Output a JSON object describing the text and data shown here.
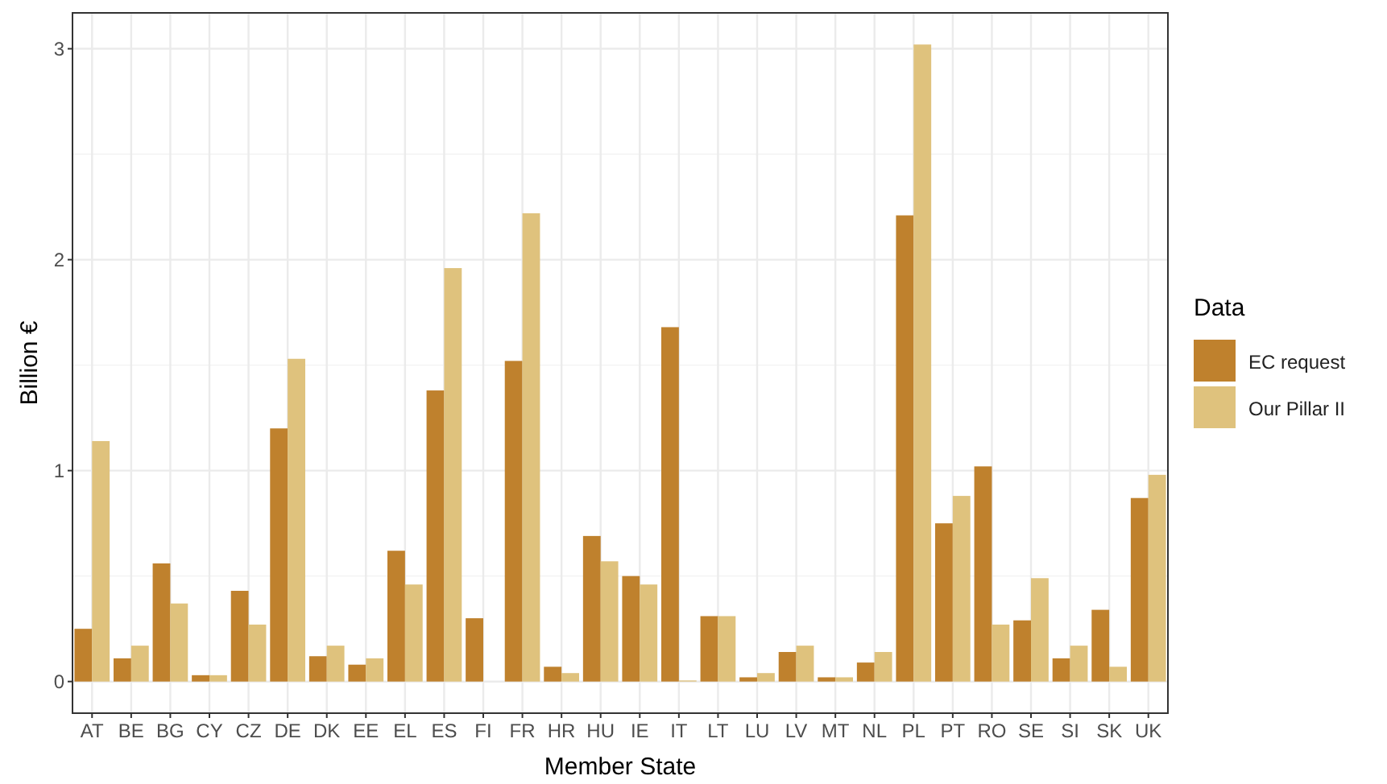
{
  "chart_data": {
    "type": "bar",
    "xlabel": "Member State",
    "ylabel": "Billion €",
    "legend_title": "Data",
    "legend": "right",
    "grid": true,
    "categories": [
      "AT",
      "BE",
      "BG",
      "CY",
      "CZ",
      "DE",
      "DK",
      "EE",
      "EL",
      "ES",
      "FI",
      "FR",
      "HR",
      "HU",
      "IE",
      "IT",
      "LT",
      "LU",
      "LV",
      "MT",
      "NL",
      "PL",
      "PT",
      "RO",
      "SE",
      "SI",
      "SK",
      "UK"
    ],
    "series": [
      {
        "name": "EC request",
        "color": "#bf812d",
        "values": [
          0.25,
          0.11,
          0.56,
          0.03,
          0.43,
          1.2,
          0.12,
          0.08,
          0.62,
          1.38,
          0.3,
          1.52,
          0.07,
          0.69,
          0.5,
          1.68,
          0.31,
          0.02,
          0.14,
          0.02,
          0.09,
          2.21,
          0.75,
          1.02,
          0.29,
          0.11,
          0.34,
          0.87
        ]
      },
      {
        "name": "Our Pillar II",
        "color": "#dfc27d",
        "values": [
          1.14,
          0.17,
          0.37,
          0.03,
          0.27,
          1.53,
          0.17,
          0.11,
          0.46,
          1.96,
          0,
          2.22,
          0.04,
          0.57,
          0.46,
          0.005,
          0.31,
          0.04,
          0.17,
          0.02,
          0.14,
          3.02,
          0.88,
          0.27,
          0.49,
          0.17,
          0.07,
          0.98
        ]
      }
    ],
    "ylim": [
      -0.15,
      3.17
    ],
    "yticks": [
      0,
      1,
      2,
      3
    ]
  }
}
